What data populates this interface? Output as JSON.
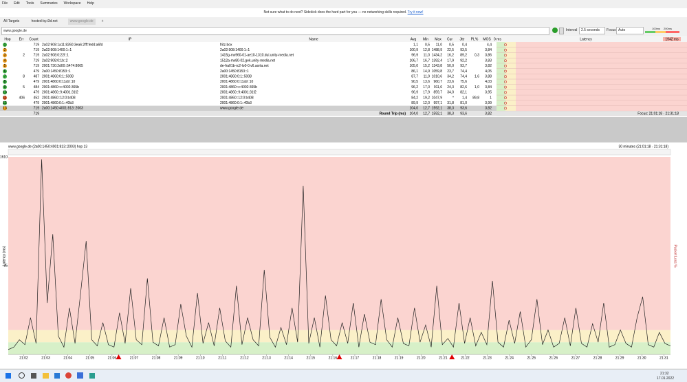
{
  "menu": [
    "File",
    "Edit",
    "Tools",
    "Summaries",
    "Workspace",
    "Help"
  ],
  "banner": {
    "text": "Not sure what to do next? Sidekick does the hard part for you — no networking skills required.",
    "link": "Try it now!"
  },
  "tabs": [
    "All Targets",
    "hosted-by.i3d.net",
    "www.google.de",
    "+"
  ],
  "address": "www.google.de",
  "controls": {
    "interval_label": "Interval",
    "interval": "2.5 seconds",
    "focus_label": "Focus",
    "focus": "Auto",
    "legend": [
      "100ms",
      "200ms"
    ]
  },
  "table": {
    "columns": [
      "Hop",
      "Err",
      "Count",
      "IP",
      "Name",
      "Avg",
      "Min",
      "Max",
      "Cur",
      "Jttr",
      "PL%",
      "MOS"
    ],
    "zero_label": "0 ms",
    "latency_header": "Latency",
    "max_label": "1942 ms",
    "hop_colors": [
      "#3cb043",
      "#f0a020",
      "#f0a020",
      "#f0a020",
      "#f0a020",
      "#3cb043",
      "#3cb043",
      "#3cb043",
      "#3cb043",
      "#3cb043",
      "#e05a2a",
      "#3cb043",
      "#f0a020"
    ],
    "rows": [
      [
        "1",
        "",
        "719",
        "2a02:908:1a11:8260:3ea6:2fff:fed4:a6fd",
        "fritz.box",
        "1,1",
        "0,5",
        "11,0",
        "0,5",
        "0,4",
        "",
        "4,4"
      ],
      [
        "2",
        "",
        "719",
        "2a02:908:1400:1::1",
        "2a02:908:1400:1::1",
        "100,9",
        "12,8",
        "1488,9",
        "22,5",
        "93,5",
        "",
        "3,84"
      ],
      [
        "3",
        "2",
        "719",
        "2a02:908:0:22f::1",
        "1415g-mx960-01-ae10-1310.dui.unity-media.net",
        "96,9",
        "11,0",
        "1434,2",
        "16,2",
        "89,2",
        "0,3",
        "3,86"
      ],
      [
        "4",
        "",
        "719",
        "2a02:908:0:1b::2",
        "1512a-mx80-02.gek.unity-media.net",
        "106,7",
        "16,7",
        "1392,4",
        "17,9",
        "92,2",
        "",
        "3,83"
      ],
      [
        "5",
        "",
        "719",
        "2001:730:2d00::5474:8065",
        "de-fra01b-rc2-lo0-0.v6.aorta.net",
        "105,0",
        "15,2",
        "1343,8",
        "50,0",
        "93,7",
        "",
        "3,82"
      ],
      [
        "6",
        "",
        "479",
        "2a00:1450:8153::1",
        "2a00:1450:8153::1",
        "86,1",
        "14,9",
        "1059,8",
        "23,7",
        "74,4",
        "",
        "4,05"
      ],
      [
        "7",
        "8",
        "487",
        "2001:4860:0:1::5008",
        "2001:4860:0:1::5008",
        "87,7",
        "11,9",
        "1010,6",
        "34,2",
        "74,4",
        "1,6",
        "3,88"
      ],
      [
        "8",
        "",
        "479",
        "2001:4860:0:11a9::10",
        "2001:4860:0:11a9::10",
        "90,5",
        "13,6",
        "960,7",
        "23,6",
        "75,6",
        "",
        "4,03"
      ],
      [
        "9",
        "5",
        "484",
        "2001:4860::c:4002:365b",
        "2001:4860::c:4002:365b",
        "96,2",
        "17,0",
        "911,6",
        "24,3",
        "82,6",
        "1,0",
        "3,84"
      ],
      [
        "10",
        "",
        "479",
        "2001:4860::9:4001:31f2",
        "2001:4860::9:4001:31f2",
        "96,9",
        "17,9",
        "859,7",
        "34,0",
        "82,1",
        "",
        "3,95"
      ],
      [
        "11",
        "406",
        "452",
        "2001:4860::12:0:b408",
        "2001:4860::12:0:b408",
        "84,2",
        "19,2",
        "1047,9",
        "*",
        "1,4",
        "89,8",
        "1"
      ],
      [
        "12",
        "",
        "479",
        "2001:4860:0:1::40b3",
        "2001:4860:0:1::40b3",
        "89,9",
        "12,0",
        "997,1",
        "31,8",
        "81,0",
        "",
        "3,99"
      ],
      [
        "13",
        "",
        "719",
        "2a00:1450:4001:813::2003",
        "www.google.de",
        "104,0",
        "12,7",
        "1592,1",
        "38,3",
        "93,6",
        "",
        "3,82"
      ]
    ],
    "summary": {
      "count": "719",
      "label": "Round Trip (ms)",
      "values": [
        "104,0",
        "12,7",
        "1592,1",
        "38,3",
        "93,6",
        "",
        "3,82"
      ],
      "focus": "Focus: 21:01:18 - 21:31:18"
    }
  },
  "chart_data": {
    "type": "line",
    "title": "www.google.de (2a00:1450:4001:813::2003) hop 13",
    "subtitle": "30 minutes (21:01:18 - 21:31:18)",
    "ylabel": "Latency (ms)",
    "y2label": "Packet Loss %",
    "color": "#222222",
    "xlim": [
      0,
      30
    ],
    "ylim": [
      0,
      1610
    ],
    "yticks": [
      1610
    ],
    "y2lim": [
      0,
      78
    ],
    "y2ticks": [
      35
    ],
    "xticks": [
      {
        "value": 0.7,
        "label": "21:02"
      },
      {
        "value": 1.7,
        "label": "21:03"
      },
      {
        "value": 2.7,
        "label": "21:04"
      },
      {
        "value": 3.7,
        "label": "21:05"
      },
      {
        "value": 4.7,
        "label": "21:06"
      },
      {
        "value": 5.7,
        "label": "21:07"
      },
      {
        "value": 6.7,
        "label": "21:08"
      },
      {
        "value": 7.7,
        "label": "21:09"
      },
      {
        "value": 8.7,
        "label": "21:10"
      },
      {
        "value": 9.7,
        "label": "21:11"
      },
      {
        "value": 10.7,
        "label": "21:12"
      },
      {
        "value": 11.7,
        "label": "21:13"
      },
      {
        "value": 12.7,
        "label": "21:14"
      },
      {
        "value": 13.7,
        "label": "21:15"
      },
      {
        "value": 14.7,
        "label": "21:16"
      },
      {
        "value": 15.7,
        "label": "21:17"
      },
      {
        "value": 16.7,
        "label": "21:18"
      },
      {
        "value": 17.7,
        "label": "21:19"
      },
      {
        "value": 18.7,
        "label": "21:20"
      },
      {
        "value": 19.7,
        "label": "21:21"
      },
      {
        "value": 20.7,
        "label": "21:22"
      },
      {
        "value": 21.7,
        "label": "21:23"
      },
      {
        "value": 22.7,
        "label": "21:24"
      },
      {
        "value": 23.7,
        "label": "21:25"
      },
      {
        "value": 24.7,
        "label": "21:26"
      },
      {
        "value": 25.7,
        "label": "21:27"
      },
      {
        "value": 26.7,
        "label": "21:28"
      },
      {
        "value": 27.7,
        "label": "21:29"
      },
      {
        "value": 28.7,
        "label": "21:30"
      },
      {
        "value": 29.7,
        "label": "21:31"
      }
    ],
    "zones": [
      {
        "to": 100,
        "color": "#d7f0c8"
      },
      {
        "to": 200,
        "color": "#fbf0c8"
      },
      {
        "to": 1610,
        "color": "#fbd4d0"
      }
    ],
    "loss_color": "#e00000",
    "loss_markers": [
      5.0,
      15.0,
      20.1
    ],
    "values": [
      40,
      60,
      120,
      80,
      300,
      90,
      1590,
      420,
      980,
      150,
      60,
      380,
      90,
      500,
      925,
      120,
      70,
      260,
      80,
      60,
      340,
      90,
      540,
      120,
      80,
      620,
      100,
      70,
      300,
      60,
      80,
      410,
      150,
      60,
      500,
      90,
      260,
      70,
      380,
      110,
      60,
      560,
      80,
      300,
      120,
      70,
      690,
      140,
      60,
      220,
      80,
      380,
      100,
      1375,
      90,
      300,
      60,
      480,
      120,
      70,
      260,
      90,
      420,
      60,
      330,
      100,
      80,
      450,
      120,
      60,
      300,
      90,
      70,
      380,
      100,
      240,
      60,
      560,
      80,
      130,
      60,
      420,
      90,
      300,
      70,
      180,
      80,
      600,
      100,
      60,
      280,
      90,
      350,
      60,
      120,
      450,
      80,
      200,
      60,
      90,
      300,
      70,
      380,
      90,
      60,
      250,
      100,
      420,
      60,
      80,
      200,
      90,
      60,
      300,
      470,
      80,
      60,
      180,
      90,
      70
    ]
  },
  "taskbar": {
    "time": "21:32",
    "date": "17.01.2022"
  }
}
